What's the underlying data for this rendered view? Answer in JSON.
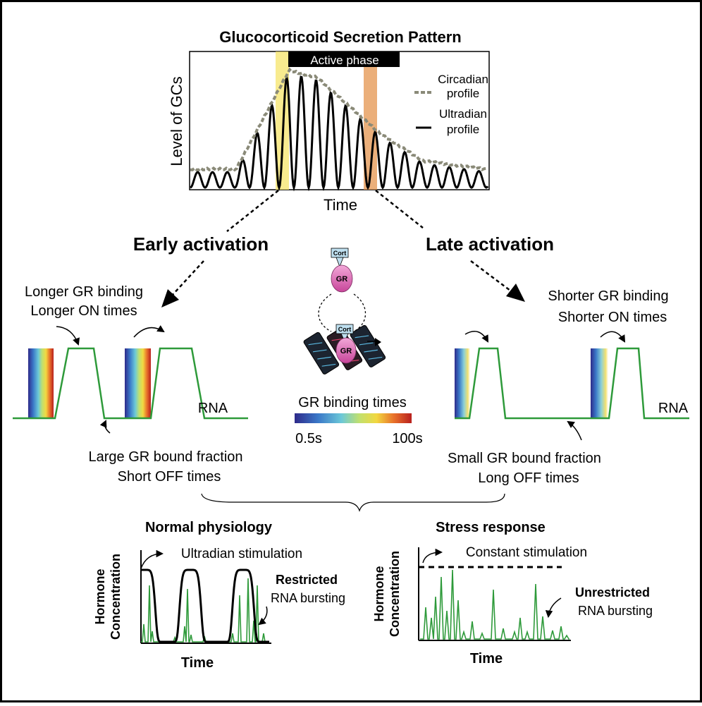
{
  "top_chart": {
    "title": "Glucocorticoid Secretion Pattern",
    "ylabel": "Level of GCs",
    "xlabel": "Time",
    "active_phase": "Active phase",
    "legend": {
      "circadian_line1": "Circadian",
      "circadian_line2": "profile",
      "ultradian_line1": "Ultradian",
      "ultradian_line2": "profile"
    },
    "colors": {
      "circadian": "#8a8a78",
      "ultradian": "#000000",
      "early_band": "#f4e15a",
      "late_band": "#e0924a"
    }
  },
  "early": {
    "heading": "Early activation",
    "top_line1": "Longer GR binding",
    "top_line2": "Longer ON times",
    "bottom_line1": "Large GR bound fraction",
    "bottom_line2": "Short OFF times",
    "rna": "RNA"
  },
  "late": {
    "heading": "Late activation",
    "top_line1": "Shorter GR binding",
    "top_line2": "Shorter ON times",
    "bottom_line1": "Small GR bound fraction",
    "bottom_line2": "Long OFF times",
    "rna": "RNA"
  },
  "center": {
    "cort": "Cort",
    "gr": "GR",
    "colorbar_title": "GR binding times",
    "colorbar_min": "0.5s",
    "colorbar_max": "100s"
  },
  "normal": {
    "title": "Normal physiology",
    "stimulation": "Ultradian stimulation",
    "bursting_bold": "Restricted",
    "bursting": "RNA bursting",
    "ylabel_line1": "Hormone",
    "ylabel_line2": "Concentration",
    "xlabel": "Time"
  },
  "stress": {
    "title": "Stress response",
    "stimulation": "Constant stimulation",
    "bursting_bold": "Unrestricted",
    "bursting": "RNA bursting",
    "ylabel_line1": "Hormone",
    "ylabel_line2": "Concentration",
    "xlabel": "Time"
  },
  "colors": {
    "rna_line": "#2e9a3a",
    "gr_pink": "#e070b8"
  }
}
